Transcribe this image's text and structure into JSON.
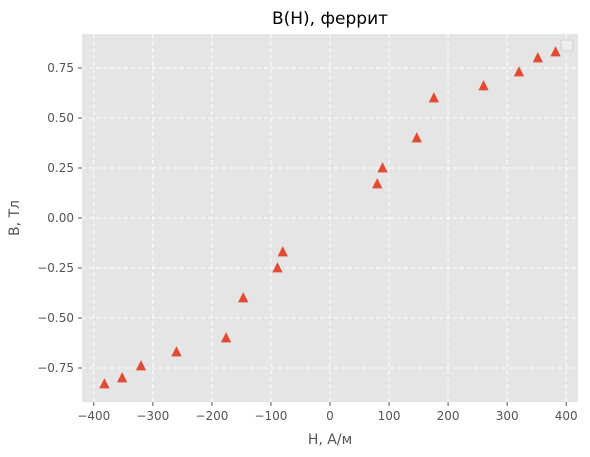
{
  "chart_data": {
    "type": "scatter",
    "title": "B(H), феррит",
    "xlabel": "H, А/м",
    "ylabel": "B, Тл",
    "xlim": [
      -420,
      420
    ],
    "ylim": [
      -0.92,
      0.92
    ],
    "xticks": [
      -400,
      -300,
      -200,
      -100,
      0,
      100,
      200,
      300,
      400
    ],
    "xtick_labels": [
      "−400",
      "−300",
      "−200",
      "−100",
      "0",
      "100",
      "200",
      "300",
      "400"
    ],
    "yticks": [
      -0.75,
      -0.5,
      -0.25,
      0.0,
      0.25,
      0.5,
      0.75
    ],
    "ytick_labels": [
      "−0.75",
      "−0.50",
      "−0.25",
      "0.00",
      "0.25",
      "0.50",
      "0.75"
    ],
    "grid": true,
    "legend": "top-right (empty)",
    "marker": "triangle-up",
    "color": "#E24A33",
    "background": "#E5E5E5",
    "series": [
      {
        "points": [
          [
            -382,
            -0.83
          ],
          [
            -352,
            -0.8
          ],
          [
            -320,
            -0.74
          ],
          [
            -260,
            -0.67
          ],
          [
            -176,
            -0.6
          ],
          [
            -147,
            -0.4
          ],
          [
            -89,
            -0.25
          ],
          [
            -80,
            -0.17
          ],
          [
            80,
            0.17
          ],
          [
            89,
            0.25
          ],
          [
            147,
            0.4
          ],
          [
            176,
            0.6
          ],
          [
            260,
            0.66
          ],
          [
            320,
            0.73
          ],
          [
            352,
            0.8
          ],
          [
            382,
            0.83
          ]
        ]
      }
    ]
  }
}
